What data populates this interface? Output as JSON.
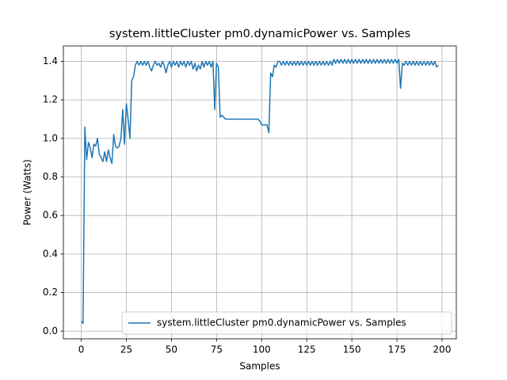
{
  "chart_data": {
    "type": "line",
    "title": "system.littleCluster pm0.dynamicPower vs. Samples",
    "x_label": "Samples",
    "y_label": "Power (Watts)",
    "series": [
      {
        "name": "system.littleCluster pm0.dynamicPower vs. Samples",
        "color": "#1f77b4",
        "values": [
          0.05,
          0.04,
          1.06,
          0.89,
          0.98,
          0.95,
          0.9,
          0.97,
          0.96,
          1.0,
          0.92,
          0.9,
          0.88,
          0.93,
          0.88,
          0.94,
          0.9,
          0.87,
          1.02,
          0.96,
          0.95,
          0.96,
          1.0,
          1.15,
          0.97,
          1.18,
          1.1,
          1.0,
          1.3,
          1.32,
          1.38,
          1.4,
          1.38,
          1.4,
          1.38,
          1.4,
          1.38,
          1.4,
          1.37,
          1.35,
          1.38,
          1.4,
          1.38,
          1.39,
          1.37,
          1.4,
          1.38,
          1.34,
          1.38,
          1.4,
          1.37,
          1.4,
          1.38,
          1.4,
          1.37,
          1.4,
          1.38,
          1.4,
          1.37,
          1.4,
          1.38,
          1.4,
          1.36,
          1.39,
          1.35,
          1.38,
          1.36,
          1.4,
          1.37,
          1.4,
          1.38,
          1.4,
          1.37,
          1.4,
          1.15,
          1.39,
          1.37,
          1.11,
          1.12,
          1.11,
          1.1,
          1.1,
          1.1,
          1.1,
          1.1,
          1.1,
          1.1,
          1.1,
          1.1,
          1.1,
          1.1,
          1.1,
          1.1,
          1.1,
          1.1,
          1.1,
          1.1,
          1.1,
          1.1,
          1.09,
          1.07,
          1.07,
          1.07,
          1.07,
          1.03,
          1.34,
          1.32,
          1.38,
          1.37,
          1.4,
          1.4,
          1.38,
          1.4,
          1.38,
          1.4,
          1.38,
          1.4,
          1.38,
          1.4,
          1.38,
          1.4,
          1.38,
          1.4,
          1.38,
          1.4,
          1.38,
          1.4,
          1.38,
          1.4,
          1.38,
          1.4,
          1.38,
          1.4,
          1.38,
          1.4,
          1.38,
          1.4,
          1.38,
          1.4,
          1.38,
          1.41,
          1.39,
          1.41,
          1.39,
          1.41,
          1.39,
          1.41,
          1.39,
          1.41,
          1.39,
          1.41,
          1.39,
          1.41,
          1.39,
          1.41,
          1.39,
          1.41,
          1.39,
          1.41,
          1.39,
          1.41,
          1.39,
          1.41,
          1.39,
          1.41,
          1.39,
          1.41,
          1.39,
          1.41,
          1.39,
          1.41,
          1.39,
          1.41,
          1.39,
          1.41,
          1.39,
          1.41,
          1.26,
          1.39,
          1.38,
          1.4,
          1.38,
          1.4,
          1.38,
          1.4,
          1.38,
          1.4,
          1.38,
          1.4,
          1.38,
          1.4,
          1.38,
          1.4,
          1.38,
          1.4,
          1.38,
          1.4,
          1.37,
          1.38
        ]
      }
    ],
    "xlim": [
      -9.9,
      207.9
    ],
    "xticks": [
      0,
      25,
      50,
      75,
      100,
      125,
      150,
      175,
      200
    ],
    "ylim": [
      -0.04,
      1.48
    ],
    "yticks": [
      {
        "value": 0,
        "label": "0.0"
      },
      0.2,
      0.4,
      0.6,
      0.8,
      {
        "value": 1,
        "label": "1.0"
      },
      1.2,
      1.4
    ],
    "grid": true,
    "legend": "lower right"
  }
}
